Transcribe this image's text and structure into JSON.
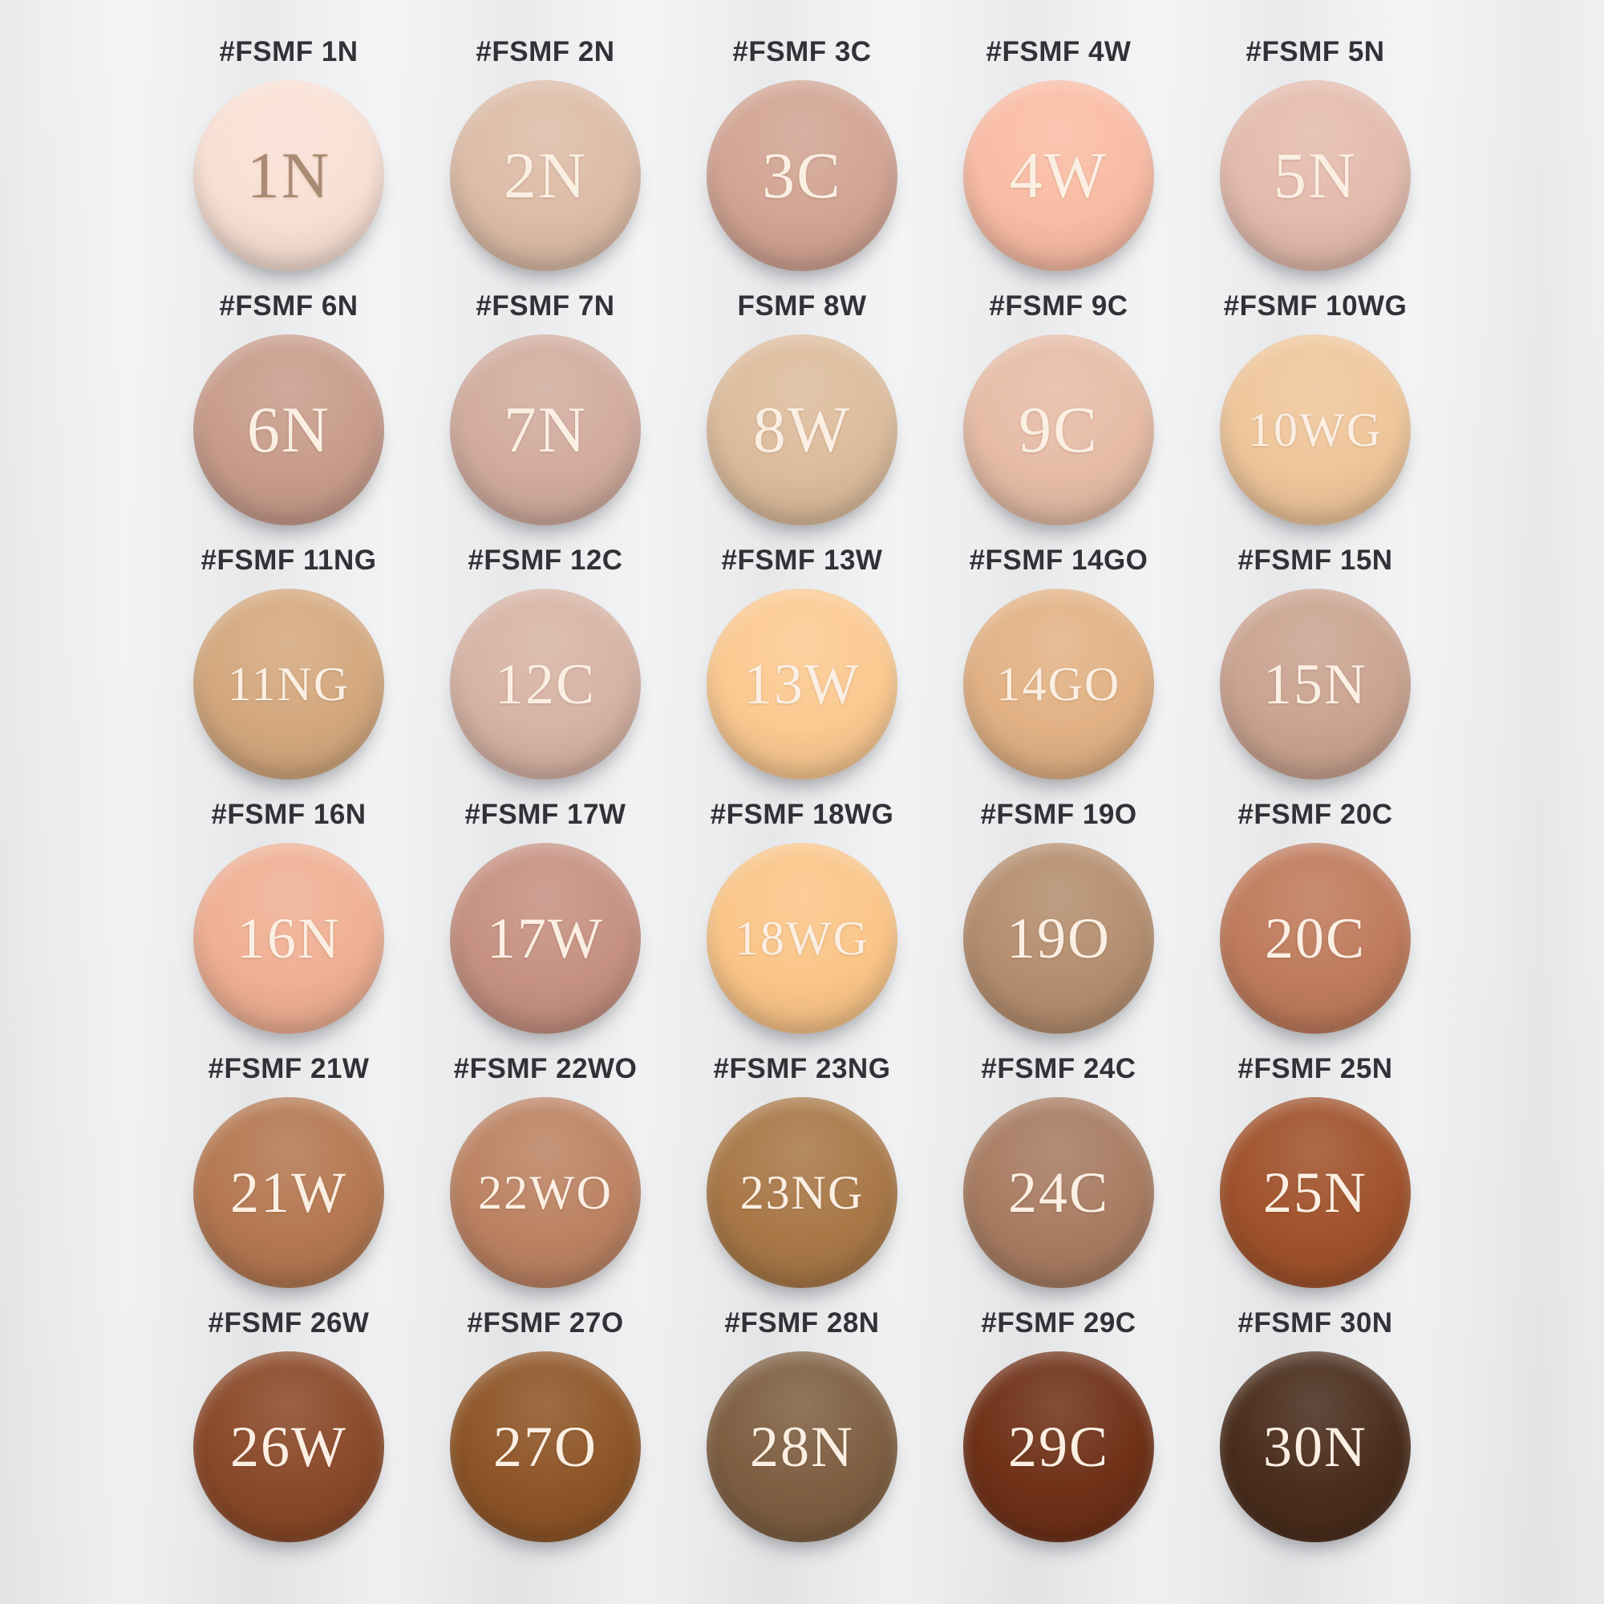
{
  "page": {
    "background": "#ECEDEF",
    "label_color": "#323236",
    "code_color": "#FBEFE3"
  },
  "swatches": [
    {
      "label": "#FSMF 1N",
      "code": "1N",
      "color": "#F9E0D4",
      "code_color": "#A98A72"
    },
    {
      "label": "#FSMF 2N",
      "code": "2N",
      "color": "#DDBCA7"
    },
    {
      "label": "#FSMF 3C",
      "code": "3C",
      "color": "#D2A493"
    },
    {
      "label": "#FSMF 4W",
      "code": "4W",
      "color": "#F9BCA4"
    },
    {
      "label": "#FSMF 5N",
      "code": "5N",
      "color": "#E4BBAD"
    },
    {
      "label": "#FSMF 6N",
      "code": "6N",
      "color": "#C89C8B"
    },
    {
      "label": "#FSMF 7N",
      "code": "7N",
      "color": "#D2AC9E"
    },
    {
      "label": "FSMF 8W",
      "code": "8W",
      "color": "#DDBC9C"
    },
    {
      "label": "#FSMF 9C",
      "code": "9C",
      "color": "#E6BCA6"
    },
    {
      "label": "#FSMF 10WG",
      "code": "10WG",
      "color": "#EFC69B"
    },
    {
      "label": "#FSMF 11NG",
      "code": "11NG",
      "color": "#D4A87E"
    },
    {
      "label": "#FSMF 12C",
      "code": "12C",
      "color": "#D7B3A4"
    },
    {
      "label": "#FSMF 13W",
      "code": "13W",
      "color": "#FBC991"
    },
    {
      "label": "#FSMF 14GO",
      "code": "14GO",
      "color": "#E2B285"
    },
    {
      "label": "#FSMF 15N",
      "code": "15N",
      "color": "#CBA390"
    },
    {
      "label": "#FSMF 16N",
      "code": "16N",
      "color": "#EFB094"
    },
    {
      "label": "#FSMF 17W",
      "code": "17W",
      "color": "#C69181"
    },
    {
      "label": "#FSMF 18WG",
      "code": "18WG",
      "color": "#FAC588"
    },
    {
      "label": "#FSMF 19O",
      "code": "19O",
      "color": "#B58E6F"
    },
    {
      "label": "#FSMF 20C",
      "code": "20C",
      "color": "#BF7B5C"
    },
    {
      "label": "#FSMF 21W",
      "code": "21W",
      "color": "#B47851"
    },
    {
      "label": "#FSMF 22WO",
      "code": "22WO",
      "color": "#BC8263"
    },
    {
      "label": "#FSMF 23NG",
      "code": "23NG",
      "color": "#A97847"
    },
    {
      "label": "#FSMF 24C",
      "code": "24C",
      "color": "#A87C62"
    },
    {
      "label": "#FSMF 25N",
      "code": "25N",
      "color": "#A0522B"
    },
    {
      "label": "#FSMF 26W",
      "code": "26W",
      "color": "#8A4929"
    },
    {
      "label": "#FSMF 27O",
      "code": "27O",
      "color": "#8E5527"
    },
    {
      "label": "#FSMF 28N",
      "code": "28N",
      "color": "#7F5F42"
    },
    {
      "label": "#FSMF 29C",
      "code": "29C",
      "color": "#6F3118"
    },
    {
      "label": "#FSMF 30N",
      "code": "30N",
      "color": "#4A2D1C"
    }
  ]
}
